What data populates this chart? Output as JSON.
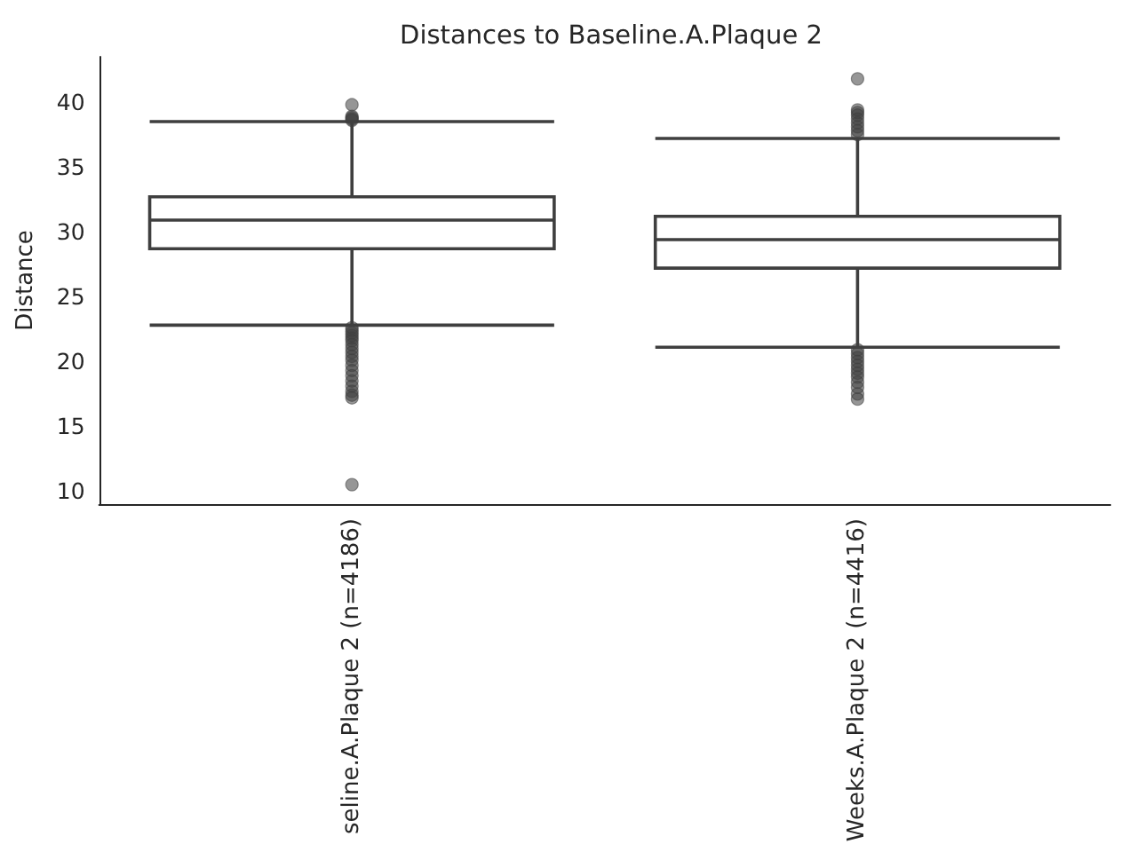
{
  "chart_data": {
    "type": "box",
    "title": "Distances to Baseline.A.Plaque 2",
    "ylabel": "Distance",
    "categories": [
      "seline.A.Plaque 2 (n=4186)",
      "Weeks.A.Plaque 2 (n=4416)"
    ],
    "color": "#3f3f3f",
    "marker": "circle",
    "boxes": [
      {
        "low": 22.8,
        "q1": 28.7,
        "median": 30.9,
        "q3": 32.7,
        "high": 38.5,
        "outliers": [
          39.8,
          38.9,
          38.8,
          38.7,
          38.6,
          22.6,
          22.4,
          22.2,
          22.0,
          21.8,
          21.6,
          21.3,
          21.0,
          20.7,
          20.4,
          20.1,
          19.7,
          19.3,
          18.9,
          18.5,
          18.1,
          17.7,
          17.4,
          17.2,
          10.5
        ]
      },
      {
        "low": 21.1,
        "q1": 27.2,
        "median": 29.4,
        "q3": 31.2,
        "high": 37.2,
        "outliers": [
          41.8,
          39.4,
          39.2,
          39.0,
          38.7,
          38.4,
          38.1,
          37.8,
          37.5,
          20.9,
          20.6,
          20.3,
          20.0,
          19.7,
          19.4,
          19.1,
          18.8,
          18.4,
          18.0,
          17.5,
          17.1
        ]
      }
    ],
    "ylim": [
      9,
      43.5
    ],
    "yticks": [
      10,
      15,
      20,
      25,
      30,
      35,
      40
    ]
  }
}
